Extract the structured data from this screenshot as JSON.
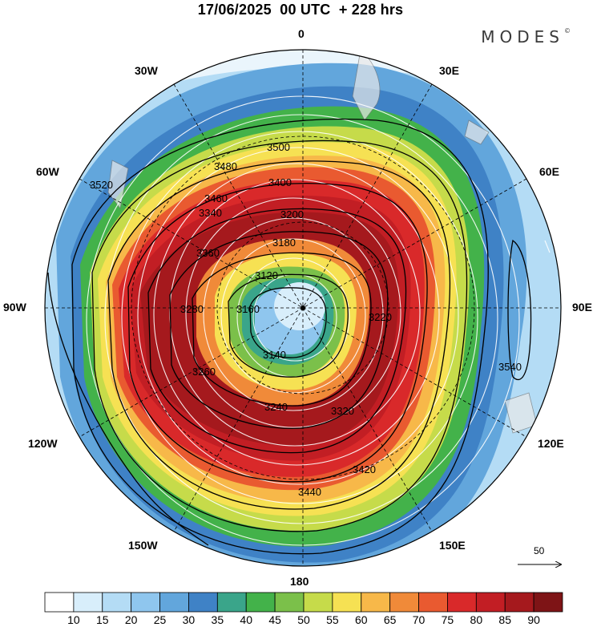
{
  "title": "17/06/2025  00 UTC  + 228 hrs",
  "brand": "MODES",
  "brand_mark": "©",
  "lon_labels": {
    "l0": "0",
    "l30e": "30E",
    "l60e": "60E",
    "l90e": "90E",
    "l120e": "120E",
    "l150e": "150E",
    "l180": "180",
    "l150w": "150W",
    "l120w": "120W",
    "l90w": "90W",
    "l60w": "60W",
    "l30w": "30W"
  },
  "contour_labels": [
    "3500",
    "3480",
    "3460",
    "3400",
    "3340",
    "3200",
    "3180",
    "3120",
    "3140",
    "3240",
    "3260",
    "3280",
    "3520",
    "3540",
    "3440",
    "3420",
    "3360",
    "3320",
    "3220",
    "3160"
  ],
  "reference_vector": {
    "value": "50"
  },
  "colorbar": {
    "ticks": [
      "10",
      "15",
      "20",
      "25",
      "30",
      "35",
      "40",
      "45",
      "50",
      "55",
      "60",
      "65",
      "70",
      "75",
      "80",
      "85",
      "90"
    ],
    "colors": [
      "#ffffff",
      "#d8eefb",
      "#b4dcf5",
      "#8fc6ee",
      "#62a6dc",
      "#3f82c6",
      "#3aa58a",
      "#43b24a",
      "#7bc04a",
      "#c6db4a",
      "#f6e153",
      "#f7b849",
      "#f08a39",
      "#e95a30",
      "#d9292a",
      "#c21e24",
      "#a5191d",
      "#7e1416"
    ]
  }
}
